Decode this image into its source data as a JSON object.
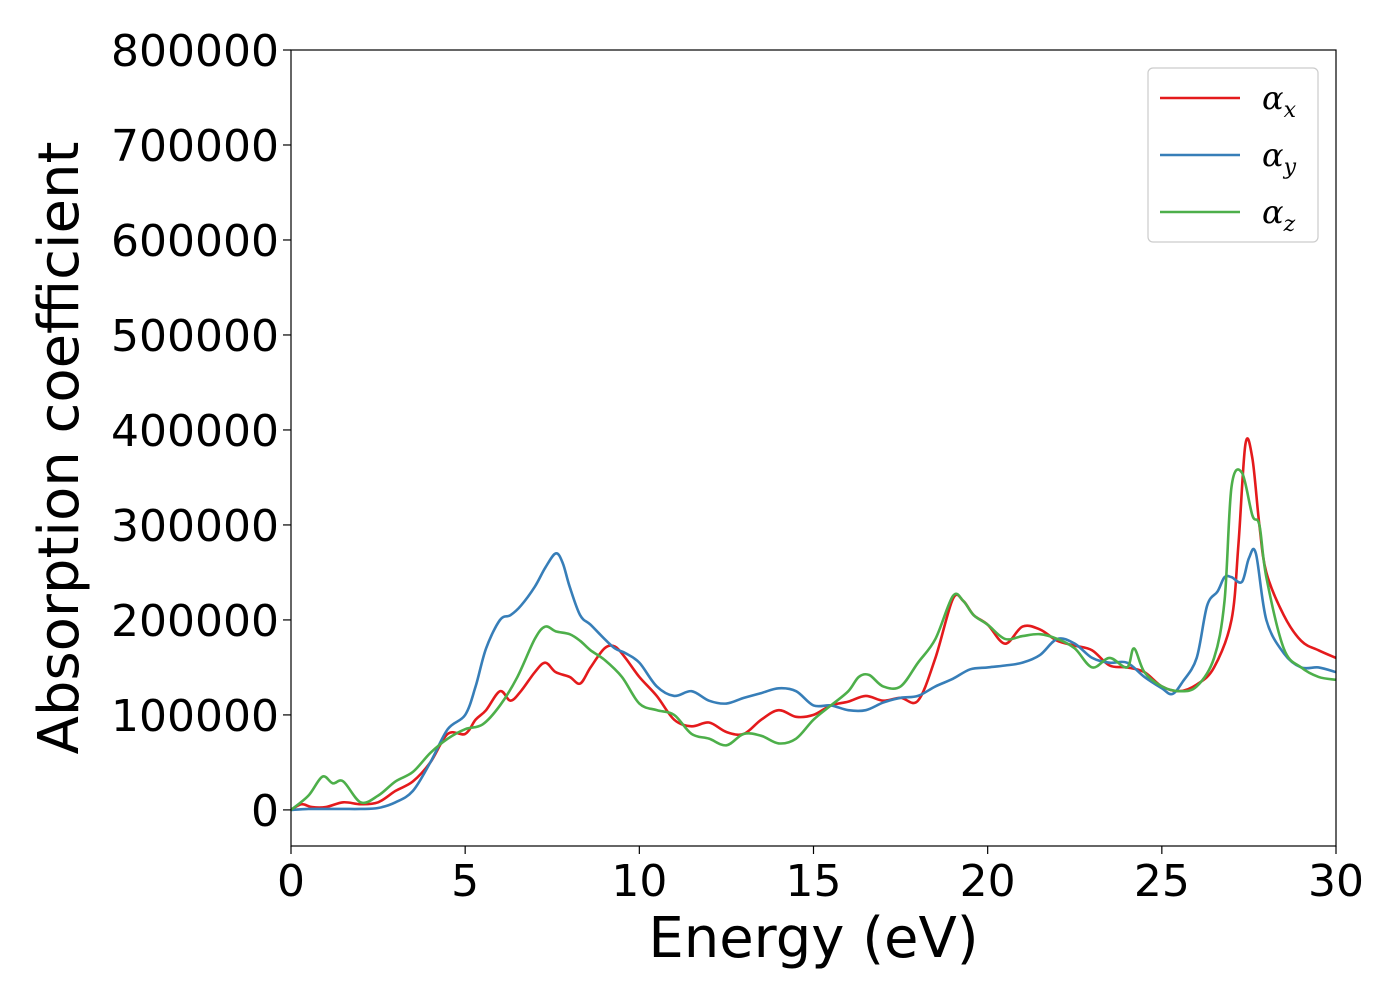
{
  "chart_data": {
    "type": "line",
    "title": "",
    "xlabel": "Energy (eV)",
    "ylabel": "Absorption coefficient",
    "xlim": [
      0,
      30
    ],
    "ylim": [
      -38000,
      800000
    ],
    "xticks": [
      0,
      5,
      10,
      15,
      20,
      25,
      30
    ],
    "xtick_labels": [
      "0",
      "5",
      "10",
      "15",
      "20",
      "25",
      "30"
    ],
    "yticks": [
      0,
      100000,
      200000,
      300000,
      400000,
      500000,
      600000,
      700000,
      800000
    ],
    "ytick_labels": [
      "0",
      "100000",
      "200000",
      "300000",
      "400000",
      "500000",
      "600000",
      "700000",
      "800000"
    ],
    "grid": false,
    "legend_position": "top-right",
    "series": [
      {
        "name": "α",
        "subscript": "x",
        "color": "#e41a1c",
        "x": [
          0,
          0.3,
          0.6,
          1.0,
          1.5,
          2.0,
          2.5,
          3.0,
          3.5,
          4.0,
          4.5,
          5.0,
          5.3,
          5.6,
          6.0,
          6.3,
          6.6,
          7.0,
          7.3,
          7.6,
          8.0,
          8.3,
          8.6,
          9.0,
          9.3,
          9.6,
          10.0,
          10.5,
          11.0,
          11.5,
          12.0,
          12.5,
          13.0,
          13.5,
          14.0,
          14.5,
          15.0,
          15.5,
          16.0,
          16.5,
          17.0,
          17.5,
          18.0,
          18.5,
          19.0,
          19.3,
          19.6,
          20.0,
          20.5,
          21.0,
          21.5,
          22.0,
          22.5,
          23.0,
          23.5,
          24.0,
          24.5,
          25.0,
          25.5,
          26.0,
          26.5,
          27.0,
          27.2,
          27.4,
          27.6,
          27.8,
          28.0,
          28.5,
          29.0,
          29.5,
          30.0
        ],
        "y": [
          0,
          6000,
          3000,
          3000,
          8000,
          6000,
          8000,
          20000,
          30000,
          50000,
          80000,
          80000,
          95000,
          105000,
          125000,
          115000,
          125000,
          145000,
          155000,
          145000,
          140000,
          133000,
          150000,
          170000,
          172000,
          160000,
          140000,
          120000,
          95000,
          88000,
          92000,
          82000,
          80000,
          95000,
          105000,
          98000,
          100000,
          110000,
          114000,
          120000,
          115000,
          118000,
          115000,
          160000,
          222000,
          220000,
          205000,
          195000,
          175000,
          193000,
          190000,
          178000,
          173000,
          168000,
          152000,
          150000,
          145000,
          130000,
          125000,
          132000,
          150000,
          200000,
          280000,
          385000,
          370000,
          300000,
          250000,
          205000,
          178000,
          168000,
          160000
        ]
      },
      {
        "name": "α",
        "subscript": "y",
        "color": "#377eb8",
        "x": [
          0,
          0.5,
          1.0,
          1.5,
          2.0,
          2.5,
          3.0,
          3.5,
          4.0,
          4.5,
          5.0,
          5.3,
          5.6,
          6.0,
          6.3,
          6.6,
          7.0,
          7.3,
          7.6,
          7.8,
          8.0,
          8.3,
          8.6,
          9.0,
          9.3,
          9.6,
          10.0,
          10.5,
          11.0,
          11.5,
          12.0,
          12.5,
          13.0,
          13.5,
          14.0,
          14.5,
          15.0,
          15.5,
          16.0,
          16.5,
          17.0,
          17.5,
          18.0,
          18.5,
          19.0,
          19.5,
          20.0,
          20.5,
          21.0,
          21.5,
          22.0,
          22.5,
          23.0,
          23.5,
          24.0,
          24.5,
          25.0,
          25.3,
          25.6,
          26.0,
          26.3,
          26.6,
          26.8,
          27.0,
          27.3,
          27.5,
          27.7,
          28.0,
          28.5,
          29.0,
          29.5,
          30.0
        ],
        "y": [
          0,
          1000,
          1000,
          1000,
          1000,
          2000,
          8000,
          20000,
          50000,
          85000,
          100000,
          130000,
          170000,
          200000,
          205000,
          215000,
          235000,
          255000,
          270000,
          260000,
          235000,
          205000,
          195000,
          180000,
          170000,
          165000,
          155000,
          130000,
          120000,
          125000,
          115000,
          112000,
          118000,
          123000,
          128000,
          125000,
          110000,
          110000,
          105000,
          105000,
          113000,
          118000,
          120000,
          130000,
          138000,
          148000,
          150000,
          152000,
          155000,
          163000,
          180000,
          175000,
          160000,
          155000,
          155000,
          140000,
          128000,
          122000,
          135000,
          160000,
          215000,
          230000,
          245000,
          245000,
          240000,
          265000,
          270000,
          200000,
          165000,
          150000,
          150000,
          145000
        ]
      },
      {
        "name": "α",
        "subscript": "z",
        "color": "#4daf4a",
        "x": [
          0,
          0.5,
          0.9,
          1.2,
          1.5,
          2.0,
          2.5,
          3.0,
          3.5,
          4.0,
          4.5,
          5.0,
          5.5,
          6.0,
          6.5,
          7.0,
          7.3,
          7.6,
          8.0,
          8.3,
          8.6,
          9.0,
          9.5,
          10.0,
          10.5,
          11.0,
          11.5,
          12.0,
          12.5,
          13.0,
          13.5,
          14.0,
          14.5,
          15.0,
          15.5,
          16.0,
          16.3,
          16.6,
          17.0,
          17.5,
          18.0,
          18.5,
          19.0,
          19.3,
          19.6,
          20.0,
          20.5,
          21.0,
          21.5,
          22.0,
          22.5,
          23.0,
          23.5,
          24.0,
          24.2,
          24.5,
          25.0,
          25.5,
          26.0,
          26.5,
          26.8,
          27.0,
          27.3,
          27.6,
          27.8,
          28.0,
          28.5,
          29.0,
          29.5,
          30.0
        ],
        "y": [
          0,
          15000,
          35000,
          28000,
          30000,
          8000,
          15000,
          30000,
          40000,
          60000,
          75000,
          85000,
          90000,
          110000,
          140000,
          180000,
          193000,
          188000,
          185000,
          178000,
          168000,
          158000,
          140000,
          112000,
          105000,
          100000,
          80000,
          75000,
          68000,
          80000,
          78000,
          70000,
          75000,
          95000,
          110000,
          125000,
          140000,
          142000,
          130000,
          130000,
          155000,
          180000,
          225000,
          220000,
          205000,
          195000,
          180000,
          183000,
          185000,
          180000,
          170000,
          150000,
          160000,
          150000,
          170000,
          145000,
          130000,
          125000,
          130000,
          160000,
          220000,
          340000,
          355000,
          310000,
          300000,
          245000,
          170000,
          150000,
          140000,
          137000
        ]
      }
    ]
  }
}
